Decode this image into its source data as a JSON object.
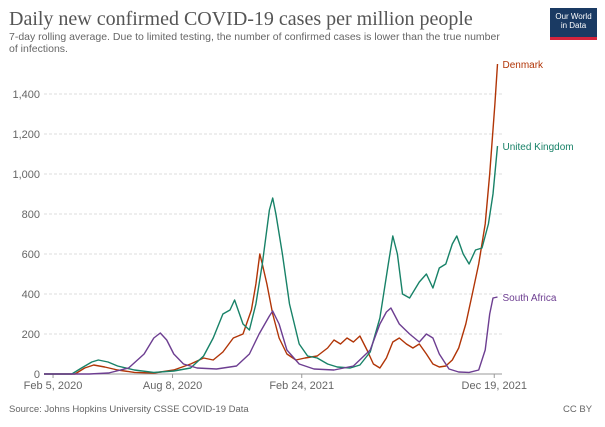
{
  "header": {
    "title": "Daily new confirmed COVID-19 cases per million people",
    "subtitle": "7-day rolling average. Due to limited testing, the number of confirmed cases is lower than the true number of infections."
  },
  "logo": {
    "line1": "Our World",
    "line2": "in Data"
  },
  "footer": {
    "source": "Source: Johns Hopkins University CSSE COVID-19 Data",
    "license": "CC BY"
  },
  "chart_data": {
    "type": "line",
    "title": "Daily new confirmed COVID-19 cases per million people",
    "ylim": [
      0,
      1550
    ],
    "y_ticks": [
      0,
      200,
      400,
      600,
      800,
      1000,
      1200,
      1400
    ],
    "y_tick_labels": [
      "0",
      "200",
      "400",
      "600",
      "800",
      "1,000",
      "1,200",
      "1,400"
    ],
    "x_range": [
      "2020-01-22",
      "2021-12-31"
    ],
    "x_ticks": [
      "2020-02-05",
      "2020-08-08",
      "2021-02-24",
      "2021-12-19"
    ],
    "x_tick_labels": [
      "Feb 5, 2020",
      "Aug 8, 2020",
      "Feb 24, 2021",
      "Dec 19, 2021"
    ],
    "grid": {
      "horizontal": true,
      "vertical": false
    },
    "series": [
      {
        "name": "Denmark",
        "color": "#b13507",
        "points": [
          [
            "2020-01-22",
            0
          ],
          [
            "2020-03-10",
            0
          ],
          [
            "2020-03-25",
            30
          ],
          [
            "2020-04-08",
            45
          ],
          [
            "2020-04-25",
            35
          ],
          [
            "2020-05-15",
            20
          ],
          [
            "2020-06-10",
            8
          ],
          [
            "2020-07-10",
            5
          ],
          [
            "2020-08-10",
            20
          ],
          [
            "2020-09-05",
            50
          ],
          [
            "2020-09-25",
            80
          ],
          [
            "2020-10-10",
            70
          ],
          [
            "2020-10-25",
            110
          ],
          [
            "2020-11-10",
            180
          ],
          [
            "2020-11-25",
            200
          ],
          [
            "2020-12-08",
            320
          ],
          [
            "2020-12-15",
            450
          ],
          [
            "2020-12-21",
            600
          ],
          [
            "2020-12-25",
            550
          ],
          [
            "2021-01-01",
            450
          ],
          [
            "2021-01-10",
            300
          ],
          [
            "2021-01-20",
            180
          ],
          [
            "2021-02-01",
            100
          ],
          [
            "2021-02-15",
            70
          ],
          [
            "2021-03-01",
            80
          ],
          [
            "2021-03-20",
            90
          ],
          [
            "2021-04-05",
            130
          ],
          [
            "2021-04-15",
            170
          ],
          [
            "2021-04-25",
            150
          ],
          [
            "2021-05-05",
            180
          ],
          [
            "2021-05-15",
            160
          ],
          [
            "2021-05-25",
            190
          ],
          [
            "2021-06-05",
            120
          ],
          [
            "2021-06-15",
            50
          ],
          [
            "2021-06-25",
            30
          ],
          [
            "2021-07-05",
            80
          ],
          [
            "2021-07-15",
            160
          ],
          [
            "2021-07-25",
            180
          ],
          [
            "2021-08-05",
            150
          ],
          [
            "2021-08-15",
            130
          ],
          [
            "2021-08-25",
            150
          ],
          [
            "2021-09-05",
            100
          ],
          [
            "2021-09-15",
            50
          ],
          [
            "2021-09-25",
            35
          ],
          [
            "2021-10-05",
            40
          ],
          [
            "2021-10-15",
            70
          ],
          [
            "2021-10-25",
            130
          ],
          [
            "2021-11-05",
            250
          ],
          [
            "2021-11-15",
            400
          ],
          [
            "2021-11-25",
            550
          ],
          [
            "2021-12-05",
            750
          ],
          [
            "2021-12-12",
            1000
          ],
          [
            "2021-12-20",
            1350
          ],
          [
            "2021-12-24",
            1550
          ]
        ]
      },
      {
        "name": "United Kingdom",
        "color": "#188268",
        "points": [
          [
            "2020-01-22",
            0
          ],
          [
            "2020-03-05",
            0
          ],
          [
            "2020-03-20",
            30
          ],
          [
            "2020-04-05",
            60
          ],
          [
            "2020-04-15",
            70
          ],
          [
            "2020-04-30",
            60
          ],
          [
            "2020-05-15",
            40
          ],
          [
            "2020-06-10",
            20
          ],
          [
            "2020-07-10",
            8
          ],
          [
            "2020-08-10",
            15
          ],
          [
            "2020-09-05",
            30
          ],
          [
            "2020-09-25",
            90
          ],
          [
            "2020-10-10",
            180
          ],
          [
            "2020-10-25",
            300
          ],
          [
            "2020-11-05",
            320
          ],
          [
            "2020-11-12",
            370
          ],
          [
            "2020-11-25",
            250
          ],
          [
            "2020-12-05",
            220
          ],
          [
            "2020-12-15",
            350
          ],
          [
            "2020-12-25",
            550
          ],
          [
            "2021-01-05",
            820
          ],
          [
            "2021-01-10",
            880
          ],
          [
            "2021-01-15",
            800
          ],
          [
            "2021-01-25",
            600
          ],
          [
            "2021-02-05",
            350
          ],
          [
            "2021-02-20",
            150
          ],
          [
            "2021-03-05",
            90
          ],
          [
            "2021-03-20",
            80
          ],
          [
            "2021-04-05",
            50
          ],
          [
            "2021-04-20",
            35
          ],
          [
            "2021-05-10",
            30
          ],
          [
            "2021-05-25",
            45
          ],
          [
            "2021-06-10",
            110
          ],
          [
            "2021-06-25",
            280
          ],
          [
            "2021-07-08",
            550
          ],
          [
            "2021-07-15",
            690
          ],
          [
            "2021-07-22",
            600
          ],
          [
            "2021-07-30",
            400
          ],
          [
            "2021-08-10",
            380
          ],
          [
            "2021-08-25",
            460
          ],
          [
            "2021-09-05",
            500
          ],
          [
            "2021-09-15",
            430
          ],
          [
            "2021-09-25",
            530
          ],
          [
            "2021-10-05",
            550
          ],
          [
            "2021-10-15",
            650
          ],
          [
            "2021-10-22",
            690
          ],
          [
            "2021-11-01",
            600
          ],
          [
            "2021-11-10",
            550
          ],
          [
            "2021-11-20",
            620
          ],
          [
            "2021-11-30",
            630
          ],
          [
            "2021-12-10",
            750
          ],
          [
            "2021-12-17",
            900
          ],
          [
            "2021-12-24",
            1140
          ]
        ]
      },
      {
        "name": "South Africa",
        "color": "#6d3e91",
        "points": [
          [
            "2020-01-22",
            0
          ],
          [
            "2020-04-01",
            0
          ],
          [
            "2020-05-01",
            5
          ],
          [
            "2020-06-01",
            30
          ],
          [
            "2020-06-25",
            100
          ],
          [
            "2020-07-10",
            180
          ],
          [
            "2020-07-20",
            205
          ],
          [
            "2020-07-30",
            170
          ],
          [
            "2020-08-10",
            100
          ],
          [
            "2020-08-25",
            50
          ],
          [
            "2020-09-15",
            30
          ],
          [
            "2020-10-15",
            25
          ],
          [
            "2020-11-15",
            40
          ],
          [
            "2020-12-05",
            100
          ],
          [
            "2020-12-20",
            200
          ],
          [
            "2021-01-05",
            290
          ],
          [
            "2021-01-10",
            315
          ],
          [
            "2021-01-20",
            250
          ],
          [
            "2021-02-01",
            120
          ],
          [
            "2021-02-20",
            50
          ],
          [
            "2021-03-15",
            25
          ],
          [
            "2021-04-15",
            20
          ],
          [
            "2021-05-15",
            40
          ],
          [
            "2021-06-10",
            120
          ],
          [
            "2021-06-25",
            250
          ],
          [
            "2021-07-05",
            310
          ],
          [
            "2021-07-12",
            330
          ],
          [
            "2021-07-25",
            250
          ],
          [
            "2021-08-10",
            200
          ],
          [
            "2021-08-25",
            160
          ],
          [
            "2021-09-05",
            200
          ],
          [
            "2021-09-15",
            180
          ],
          [
            "2021-09-25",
            100
          ],
          [
            "2021-10-10",
            25
          ],
          [
            "2021-10-25",
            10
          ],
          [
            "2021-11-10",
            8
          ],
          [
            "2021-11-25",
            20
          ],
          [
            "2021-12-05",
            120
          ],
          [
            "2021-12-12",
            300
          ],
          [
            "2021-12-17",
            380
          ],
          [
            "2021-12-24",
            385
          ]
        ]
      }
    ]
  }
}
